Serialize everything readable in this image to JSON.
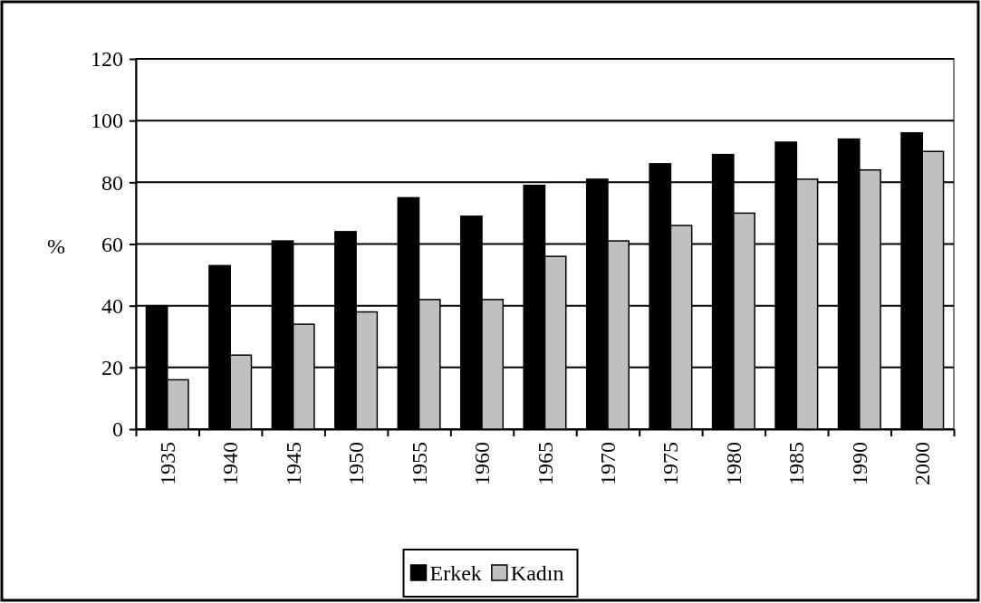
{
  "chart_data": {
    "type": "bar",
    "ylabel": "%",
    "categories": [
      "1935",
      "1940",
      "1945",
      "1950",
      "1955",
      "1960",
      "1965",
      "1970",
      "1975",
      "1980",
      "1985",
      "1990",
      "2000"
    ],
    "series": [
      {
        "name": "Erkek",
        "color": "#000000",
        "values": [
          40,
          53,
          61,
          64,
          75,
          69,
          79,
          81,
          86,
          89,
          93,
          94,
          96
        ]
      },
      {
        "name": "Kadın",
        "color": "#c0c0c0",
        "values": [
          16,
          24,
          34,
          38,
          42,
          42,
          56,
          61,
          66,
          70,
          81,
          84,
          90
        ]
      }
    ],
    "ylim": [
      0,
      120
    ],
    "yticks": [
      0,
      20,
      40,
      60,
      80,
      100,
      120
    ],
    "grid": "y",
    "legend": "bottom"
  }
}
